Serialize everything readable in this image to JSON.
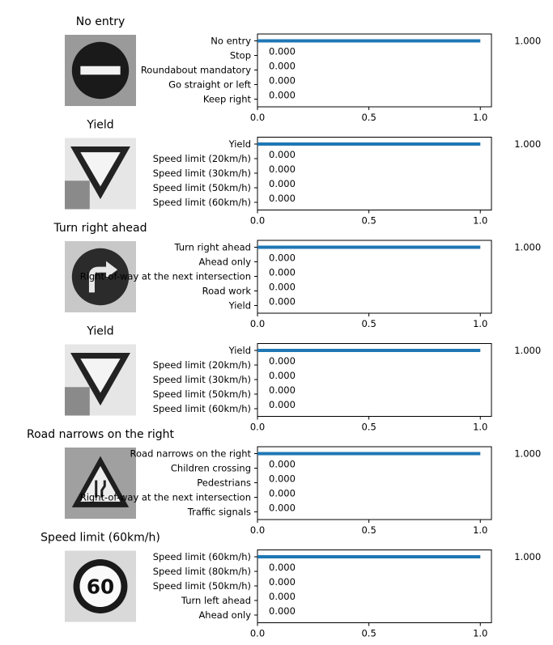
{
  "chart_data": [
    {
      "type": "bar",
      "title": "No entry",
      "sign": "no-entry-sign-icon",
      "categories": [
        "No entry",
        "Stop",
        "Roundabout mandatory",
        "Go straight or left",
        "Keep right"
      ],
      "values": [
        1.0,
        0.0,
        0.0,
        0.0,
        0.0
      ],
      "value_labels": [
        "1.000",
        "0.000",
        "0.000",
        "0.000",
        "0.000"
      ],
      "xlim": [
        0,
        1.05
      ],
      "xticks": [
        "0.0",
        "0.5",
        "1.0"
      ]
    },
    {
      "type": "bar",
      "title": "Yield",
      "sign": "yield-sign-icon",
      "categories": [
        "Yield",
        "Speed limit (20km/h)",
        "Speed limit (30km/h)",
        "Speed limit (50km/h)",
        "Speed limit (60km/h)"
      ],
      "values": [
        1.0,
        0.0,
        0.0,
        0.0,
        0.0
      ],
      "value_labels": [
        "1.000",
        "0.000",
        "0.000",
        "0.000",
        "0.000"
      ],
      "xlim": [
        0,
        1.05
      ],
      "xticks": [
        "0.0",
        "0.5",
        "1.0"
      ]
    },
    {
      "type": "bar",
      "title": "Turn right ahead",
      "sign": "turn-right-sign-icon",
      "categories": [
        "Turn right ahead",
        "Ahead only",
        "Right-of-way at the next intersection",
        "Road work",
        "Yield"
      ],
      "values": [
        1.0,
        0.0,
        0.0,
        0.0,
        0.0
      ],
      "value_labels": [
        "1.000",
        "0.000",
        "0.000",
        "0.000",
        "0.000"
      ],
      "xlim": [
        0,
        1.05
      ],
      "xticks": [
        "0.0",
        "0.5",
        "1.0"
      ]
    },
    {
      "type": "bar",
      "title": "Yield",
      "sign": "yield-sign-icon",
      "categories": [
        "Yield",
        "Speed limit (20km/h)",
        "Speed limit (30km/h)",
        "Speed limit (50km/h)",
        "Speed limit (60km/h)"
      ],
      "values": [
        1.0,
        0.0,
        0.0,
        0.0,
        0.0
      ],
      "value_labels": [
        "1.000",
        "0.000",
        "0.000",
        "0.000",
        "0.000"
      ],
      "xlim": [
        0,
        1.05
      ],
      "xticks": [
        "0.0",
        "0.5",
        "1.0"
      ]
    },
    {
      "type": "bar",
      "title": "Road narrows on the right",
      "sign": "road-narrows-sign-icon",
      "categories": [
        "Road narrows on the right",
        "Children crossing",
        "Pedestrians",
        "Right-of-way at the next intersection",
        "Traffic signals"
      ],
      "values": [
        1.0,
        0.0,
        0.0,
        0.0,
        0.0
      ],
      "value_labels": [
        "1.000",
        "0.000",
        "0.000",
        "0.000",
        "0.000"
      ],
      "xlim": [
        0,
        1.05
      ],
      "xticks": [
        "0.0",
        "0.5",
        "1.0"
      ]
    },
    {
      "type": "bar",
      "title": "Speed limit (60km/h)",
      "sign": "speed-limit-60-sign-icon",
      "sign_text": "60",
      "categories": [
        "Speed limit (60km/h)",
        "Speed limit (80km/h)",
        "Speed limit (50km/h)",
        "Turn left ahead",
        "Ahead only"
      ],
      "values": [
        1.0,
        0.0,
        0.0,
        0.0,
        0.0
      ],
      "value_labels": [
        "1.000",
        "0.000",
        "0.000",
        "0.000",
        "0.000"
      ],
      "xlim": [
        0,
        1.05
      ],
      "xticks": [
        "0.0",
        "0.5",
        "1.0"
      ]
    }
  ],
  "colors": {
    "bar": "#1f77b4",
    "axis": "#000000",
    "sign_red": "#333333",
    "sign_bg": "#dddddd"
  }
}
